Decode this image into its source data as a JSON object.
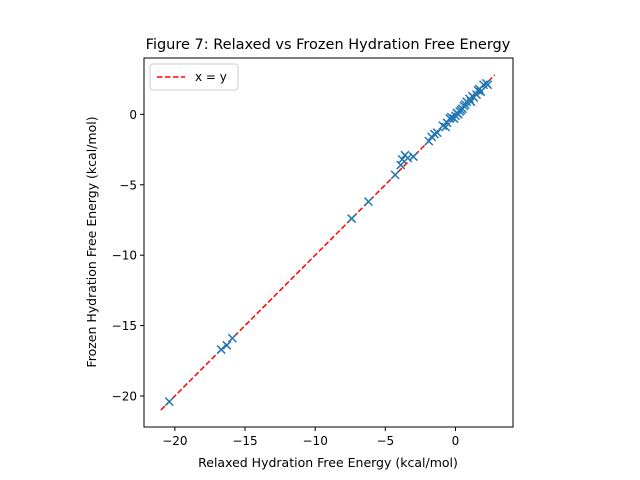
{
  "chart_data": {
    "type": "scatter",
    "title": "Figure 7: Relaxed vs Frozen Hydration Free Energy",
    "xlabel": "Relaxed Hydration Free Energy (kcal/mol)",
    "ylabel": "Frozen Hydration Free Energy (kcal/mol)",
    "xlim": [
      -22.2,
      4.1
    ],
    "ylim": [
      -22.2,
      4.0
    ],
    "xticks": [
      -20,
      -15,
      -10,
      -5,
      0
    ],
    "yticks": [
      -20,
      -15,
      -10,
      -5,
      0
    ],
    "grid": false,
    "legend": {
      "placement": "top-left",
      "entries": [
        "x = y"
      ]
    },
    "reference_line": {
      "label": "x = y",
      "color": "#ff0000",
      "style": "dashed",
      "x": [
        -21.0,
        2.8
      ],
      "y": [
        -21.0,
        2.8
      ]
    },
    "series": [
      {
        "marker": "x",
        "color": "#1f77b4",
        "points": [
          [
            -20.4,
            -20.4
          ],
          [
            -16.7,
            -16.7
          ],
          [
            -16.3,
            -16.4
          ],
          [
            -15.9,
            -15.9
          ],
          [
            -7.4,
            -7.4
          ],
          [
            -6.2,
            -6.2
          ],
          [
            -4.3,
            -4.3
          ],
          [
            -3.9,
            -3.6
          ],
          [
            -3.8,
            -3.2
          ],
          [
            -3.6,
            -2.9
          ],
          [
            -3.4,
            -3.1
          ],
          [
            -3.0,
            -3.0
          ],
          [
            -1.9,
            -1.9
          ],
          [
            -1.7,
            -1.6
          ],
          [
            -1.5,
            -1.4
          ],
          [
            -1.3,
            -1.3
          ],
          [
            -0.9,
            -0.8
          ],
          [
            -0.7,
            -0.9
          ],
          [
            -0.6,
            -0.6
          ],
          [
            -0.4,
            -0.3
          ],
          [
            -0.3,
            -0.2
          ],
          [
            -0.1,
            -0.3
          ],
          [
            0.0,
            -0.1
          ],
          [
            0.1,
            0.1
          ],
          [
            0.2,
            0.0
          ],
          [
            0.3,
            0.2
          ],
          [
            0.4,
            0.3
          ],
          [
            0.5,
            0.4
          ],
          [
            0.6,
            0.6
          ],
          [
            0.7,
            0.7
          ],
          [
            0.8,
            0.9
          ],
          [
            1.0,
            1.1
          ],
          [
            1.1,
            0.9
          ],
          [
            1.2,
            1.3
          ],
          [
            1.3,
            1.2
          ],
          [
            1.5,
            1.4
          ],
          [
            1.6,
            1.7
          ],
          [
            1.7,
            1.8
          ],
          [
            1.8,
            1.6
          ],
          [
            2.0,
            2.1
          ],
          [
            2.2,
            2.2
          ],
          [
            2.3,
            2.1
          ]
        ]
      }
    ]
  }
}
